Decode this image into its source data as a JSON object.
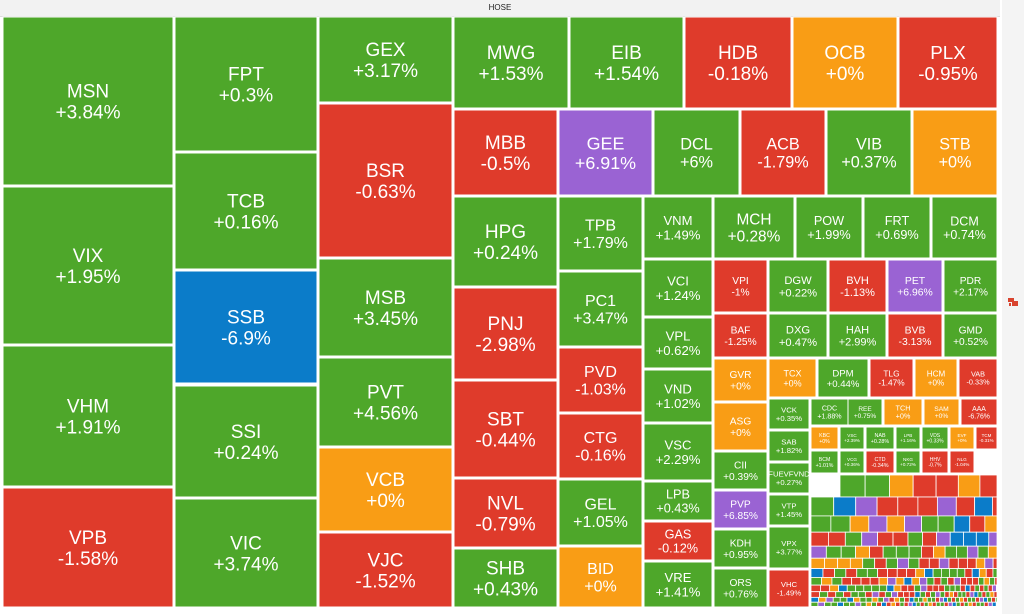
{
  "title": "HOSE",
  "colors": {
    "up": "#4ea72a",
    "down": "#df3b2b",
    "flat": "#f99d15",
    "ceiling": "#9a63d3",
    "floor": "#0b7cc9"
  },
  "chart_data": {
    "type": "treemap",
    "title": "HOSE",
    "unlabeled_small_tiles": "many tiny tiles in the bottom-right corner carry labels too small to read",
    "tiles": [
      {
        "ticker": "MSN",
        "change": "+3.84%",
        "value": 3.84
      },
      {
        "ticker": "VIX",
        "change": "+1.95%",
        "value": 1.95
      },
      {
        "ticker": "VHM",
        "change": "+1.91%",
        "value": 1.91
      },
      {
        "ticker": "VPB",
        "change": "-1.58%",
        "value": -1.58
      },
      {
        "ticker": "FPT",
        "change": "+0.3%",
        "value": 0.3
      },
      {
        "ticker": "TCB",
        "change": "+0.16%",
        "value": 0.16
      },
      {
        "ticker": "SSB",
        "change": "-6.9%",
        "value": -6.9
      },
      {
        "ticker": "SSI",
        "change": "+0.24%",
        "value": 0.24
      },
      {
        "ticker": "VIC",
        "change": "+3.74%",
        "value": 3.74
      },
      {
        "ticker": "GEX",
        "change": "+3.17%",
        "value": 3.17
      },
      {
        "ticker": "BSR",
        "change": "-0.63%",
        "value": -0.63
      },
      {
        "ticker": "MSB",
        "change": "+3.45%",
        "value": 3.45
      },
      {
        "ticker": "PVT",
        "change": "+4.56%",
        "value": 4.56
      },
      {
        "ticker": "VCB",
        "change": "+0%",
        "value": 0
      },
      {
        "ticker": "VJC",
        "change": "-1.52%",
        "value": -1.52
      },
      {
        "ticker": "MWG",
        "change": "+1.53%",
        "value": 1.53
      },
      {
        "ticker": "EIB",
        "change": "+1.54%",
        "value": 1.54
      },
      {
        "ticker": "HDB",
        "change": "-0.18%",
        "value": -0.18
      },
      {
        "ticker": "OCB",
        "change": "+0%",
        "value": 0
      },
      {
        "ticker": "PLX",
        "change": "-0.95%",
        "value": -0.95
      },
      {
        "ticker": "MBB",
        "change": "-0.5%",
        "value": -0.5
      },
      {
        "ticker": "GEE",
        "change": "+6.91%",
        "value": 6.91
      },
      {
        "ticker": "DCL",
        "change": "+6%",
        "value": 6
      },
      {
        "ticker": "ACB",
        "change": "-1.79%",
        "value": -1.79
      },
      {
        "ticker": "VIB",
        "change": "+0.37%",
        "value": 0.37
      },
      {
        "ticker": "STB",
        "change": "+0%",
        "value": 0
      },
      {
        "ticker": "HPG",
        "change": "+0.24%",
        "value": 0.24
      },
      {
        "ticker": "PNJ",
        "change": "-2.98%",
        "value": -2.98
      },
      {
        "ticker": "SBT",
        "change": "-0.44%",
        "value": -0.44
      },
      {
        "ticker": "NVL",
        "change": "-0.79%",
        "value": -0.79
      },
      {
        "ticker": "SHB",
        "change": "+0.43%",
        "value": 0.43
      },
      {
        "ticker": "TPB",
        "change": "+1.79%",
        "value": 1.79
      },
      {
        "ticker": "PC1",
        "change": "+3.47%",
        "value": 3.47
      },
      {
        "ticker": "PVD",
        "change": "-1.03%",
        "value": -1.03
      },
      {
        "ticker": "CTG",
        "change": "-0.16%",
        "value": -0.16
      },
      {
        "ticker": "GEL",
        "change": "+1.05%",
        "value": 1.05
      },
      {
        "ticker": "BID",
        "change": "+0%",
        "value": 0
      },
      {
        "ticker": "VNM",
        "change": "+1.49%",
        "value": 1.49
      },
      {
        "ticker": "MCH",
        "change": "+0.28%",
        "value": 0.28
      },
      {
        "ticker": "POW",
        "change": "+1.99%",
        "value": 1.99
      },
      {
        "ticker": "FRT",
        "change": "+0.69%",
        "value": 0.69
      },
      {
        "ticker": "DCM",
        "change": "+0.74%",
        "value": 0.74
      },
      {
        "ticker": "VCI",
        "change": "+1.24%",
        "value": 1.24
      },
      {
        "ticker": "VPL",
        "change": "+0.62%",
        "value": 0.62
      },
      {
        "ticker": "VND",
        "change": "+1.02%",
        "value": 1.02
      },
      {
        "ticker": "VSC",
        "change": "+2.29%",
        "value": 2.29
      },
      {
        "ticker": "LPB",
        "change": "+0.43%",
        "value": 0.43
      },
      {
        "ticker": "GAS",
        "change": "-0.12%",
        "value": -0.12
      },
      {
        "ticker": "VRE",
        "change": "+1.41%",
        "value": 1.41
      },
      {
        "ticker": "VPI",
        "change": "-1%",
        "value": -1
      },
      {
        "ticker": "DGW",
        "change": "+0.22%",
        "value": 0.22
      },
      {
        "ticker": "BVH",
        "change": "-1.13%",
        "value": -1.13
      },
      {
        "ticker": "PET",
        "change": "+6.96%",
        "value": 6.96
      },
      {
        "ticker": "PDR",
        "change": "+2.17%",
        "value": 2.17
      },
      {
        "ticker": "BAF",
        "change": "-1.25%",
        "value": -1.25
      },
      {
        "ticker": "DXG",
        "change": "+0.47%",
        "value": 0.47
      },
      {
        "ticker": "HAH",
        "change": "+2.99%",
        "value": 2.99
      },
      {
        "ticker": "BVB",
        "change": "-3.13%",
        "value": -3.13
      },
      {
        "ticker": "GMD",
        "change": "+0.52%",
        "value": 0.52
      },
      {
        "ticker": "GVR",
        "change": "+0%",
        "value": 0
      },
      {
        "ticker": "TCX",
        "change": "+0%",
        "value": 0
      },
      {
        "ticker": "DPM",
        "change": "+0.44%",
        "value": 0.44
      },
      {
        "ticker": "TLG",
        "change": "-1.47%",
        "value": -1.47
      },
      {
        "ticker": "HCM",
        "change": "+0%",
        "value": 0
      },
      {
        "ticker": "VAB",
        "change": "-0.33%",
        "value": -0.33
      },
      {
        "ticker": "ASG",
        "change": "+0%",
        "value": 0
      },
      {
        "ticker": "CII",
        "change": "+0.39%",
        "value": 0.39
      },
      {
        "ticker": "PVP",
        "change": "+6.85%",
        "value": 6.85
      },
      {
        "ticker": "KDH",
        "change": "+0.95%",
        "value": 0.95
      },
      {
        "ticker": "ORS",
        "change": "+0.76%",
        "value": 0.76
      },
      {
        "ticker": "VCK",
        "change": "+0.35%",
        "value": 0.35
      },
      {
        "ticker": "SAB",
        "change": "+1.82%",
        "value": 1.82
      },
      {
        "ticker": "FUEVFVND",
        "change": "+0.27%",
        "value": 0.27
      },
      {
        "ticker": "VTP",
        "change": "+1.45%",
        "value": 1.45
      },
      {
        "ticker": "VPX",
        "change": "+3.77%",
        "value": 3.77
      },
      {
        "ticker": "VHC",
        "change": "-1.49%",
        "value": -1.49
      },
      {
        "ticker": "CDC",
        "change": "+1.88%",
        "value": 1.88
      },
      {
        "ticker": "REE",
        "change": "+0.75%",
        "value": 0.75
      },
      {
        "ticker": "TCH",
        "change": "+0%",
        "value": 0
      },
      {
        "ticker": "SAM",
        "change": "+0%",
        "value": 0
      },
      {
        "ticker": "AAA",
        "change": "-6.76%",
        "value": -6.76
      },
      {
        "ticker": "KBC",
        "change": "+0%",
        "value": 0
      },
      {
        "ticker": "VSC",
        "change": "+2.39%",
        "value": 2.39
      },
      {
        "ticker": "NAB",
        "change": "+0.28%",
        "value": 0.28
      },
      {
        "ticker": "LPB",
        "change": "+1.16%",
        "value": 1.16
      },
      {
        "ticker": "VDS",
        "change": "+0.33%",
        "value": 0.33
      },
      {
        "ticker": "EVF",
        "change": "+0%",
        "value": 0
      },
      {
        "ticker": "TCM",
        "change": "-0.31%",
        "value": -0.31
      },
      {
        "ticker": "BCM",
        "change": "+1.01%",
        "value": 1.01
      },
      {
        "ticker": "VCG",
        "change": "+0.36%",
        "value": 0.36
      },
      {
        "ticker": "CTD",
        "change": "-0.34%",
        "value": -0.34
      },
      {
        "ticker": "NKG",
        "change": "+0.72%",
        "value": 0.72
      },
      {
        "ticker": "HHV",
        "change": "-0.7%",
        "value": -0.7
      },
      {
        "ticker": "NLG",
        "change": "-1.04%",
        "value": -1.04
      }
    ]
  }
}
